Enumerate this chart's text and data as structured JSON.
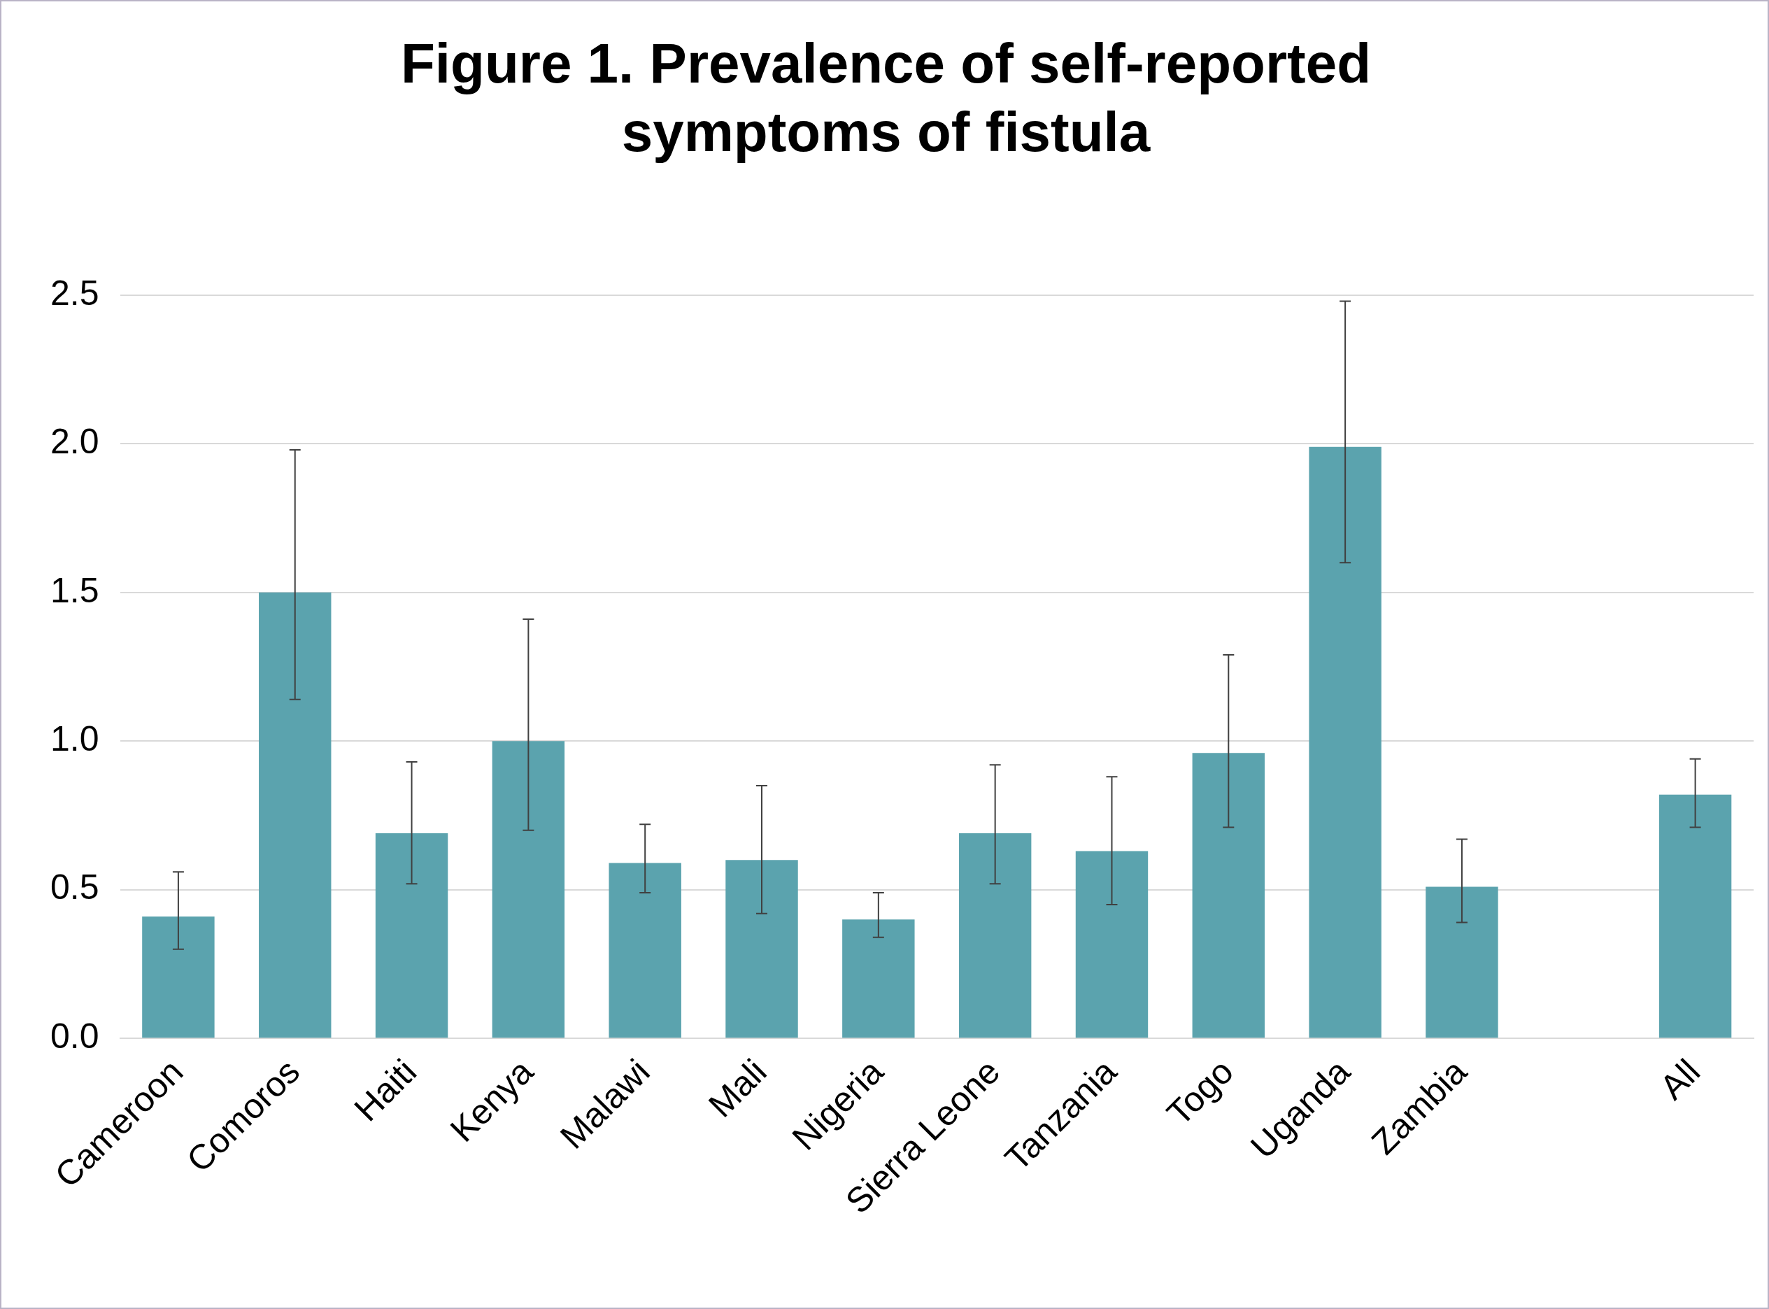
{
  "chart_data": {
    "type": "bar",
    "title": "Figure 1. Prevalence of self-reported symptoms of fistula",
    "categories": [
      "Cameroon",
      "Comoros",
      "Haiti",
      "Kenya",
      "Malawi",
      "Mali",
      "Nigeria",
      "Sierra Leone",
      "Tanzania",
      "Togo",
      "Uganda",
      "Zambia",
      null,
      "All"
    ],
    "values": [
      0.41,
      1.5,
      0.69,
      1.0,
      0.59,
      0.6,
      0.4,
      0.69,
      0.63,
      0.96,
      1.99,
      0.51,
      null,
      0.82
    ],
    "errors": [
      [
        0.3,
        0.56
      ],
      [
        1.14,
        1.98
      ],
      [
        0.52,
        0.93
      ],
      [
        0.7,
        1.41
      ],
      [
        0.49,
        0.72
      ],
      [
        0.42,
        0.85
      ],
      [
        0.34,
        0.49
      ],
      [
        0.52,
        0.92
      ],
      [
        0.45,
        0.88
      ],
      [
        0.71,
        1.29
      ],
      [
        1.6,
        2.48
      ],
      [
        0.39,
        0.67
      ],
      null,
      [
        0.71,
        0.94
      ]
    ],
    "color": "#5ba3ae",
    "ylim": [
      0,
      2.5
    ],
    "yticks": [
      {
        "value": 0,
        "label": "0.0"
      },
      {
        "value": 0.5,
        "label": "0.5"
      },
      {
        "value": 1,
        "label": "1.0"
      },
      {
        "value": 1.5,
        "label": "1.5"
      },
      {
        "value": 2,
        "label": "2.0"
      },
      {
        "value": 2.5,
        "label": "2.5"
      }
    ],
    "grid": "y",
    "legend": false
  }
}
